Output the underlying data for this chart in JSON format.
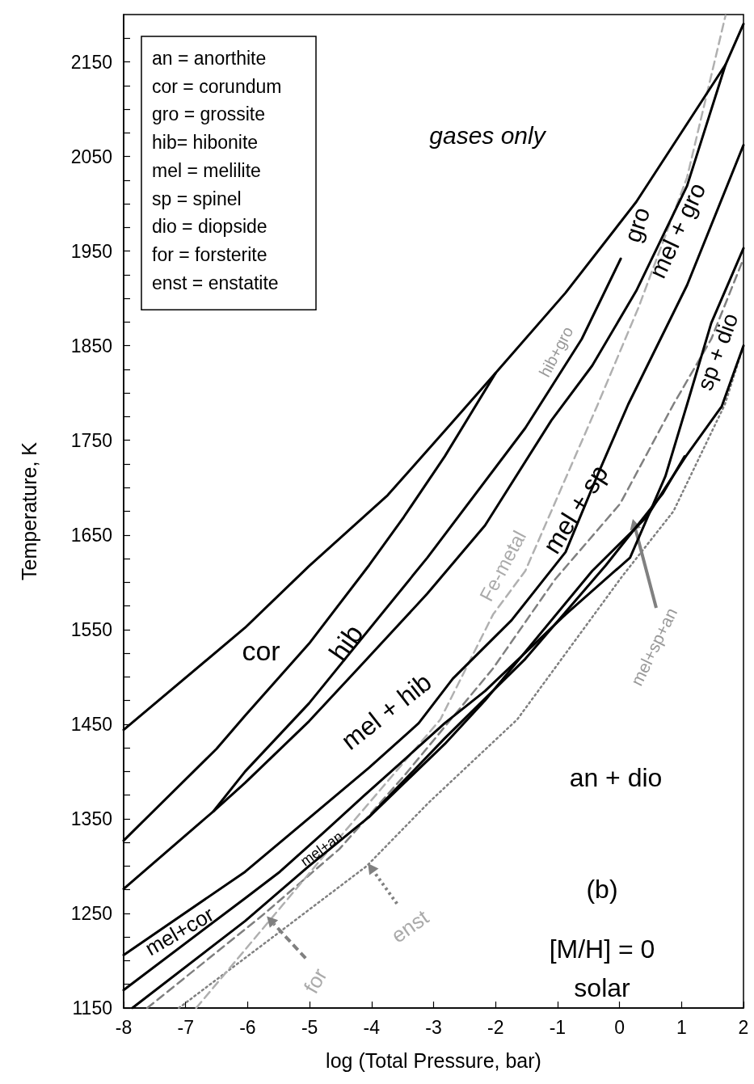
{
  "chart_data": {
    "type": "line",
    "title": "(b)",
    "subtitle": "[M/H] = 0\nsolar",
    "xlabel": "log (Total Pressure, bar)",
    "ylabel": "Temperature, K",
    "xlim": [
      -8,
      2
    ],
    "xticks": [
      -8,
      -7,
      -6,
      -5,
      -4,
      -3,
      -2,
      -1,
      0,
      1,
      2
    ],
    "ylim": [
      1150,
      2200
    ],
    "yticks": [
      1150,
      {
        "value": 1175,
        "label": null
      },
      {
        "value": 1200,
        "label": null
      },
      {
        "value": 1225,
        "label": null
      },
      1250,
      {
        "value": 1275,
        "label": null
      },
      {
        "value": 1300,
        "label": null
      },
      {
        "value": 1325,
        "label": null
      },
      1350,
      {
        "value": 1375,
        "label": null
      },
      {
        "value": 1400,
        "label": null
      },
      {
        "value": 1425,
        "label": null
      },
      1450,
      {
        "value": 1475,
        "label": null
      },
      {
        "value": 1500,
        "label": null
      },
      {
        "value": 1525,
        "label": null
      },
      1550,
      {
        "value": 1575,
        "label": null
      },
      {
        "value": 1600,
        "label": null
      },
      {
        "value": 1625,
        "label": null
      },
      1650,
      {
        "value": 1675,
        "label": null
      },
      {
        "value": 1700,
        "label": null
      },
      {
        "value": 1725,
        "label": null
      },
      1750,
      {
        "value": 1775,
        "label": null
      },
      {
        "value": 1800,
        "label": null
      },
      {
        "value": 1825,
        "label": null
      },
      1850,
      {
        "value": 1875,
        "label": null
      },
      {
        "value": 1900,
        "label": null
      },
      {
        "value": 1925,
        "label": null
      },
      1950,
      {
        "value": 1975,
        "label": null
      },
      {
        "value": 2000,
        "label": null
      },
      {
        "value": 2025,
        "label": null
      },
      2050,
      {
        "value": 2075,
        "label": null
      },
      {
        "value": 2100,
        "label": null
      },
      {
        "value": 2125,
        "label": null
      },
      2150,
      {
        "value": 2175,
        "label": null
      }
    ],
    "grid": false,
    "marker": "none",
    "annotations": [
      "an = anorthite",
      "cor = corundum",
      "gro = grossite",
      "hib= hibonite",
      "mel = melilite",
      "sp = spinel",
      "dio = diopside",
      "for = forsterite",
      "enst = enstatite",
      "gases only",
      "cor",
      "hib",
      "mel + hib",
      "mel+cor",
      "mel+an",
      "mel + sp",
      "an + dio",
      "gro",
      "mel + gro",
      "sp + dio",
      "hib+gro",
      "Fe-metal",
      "mel+sp+an",
      {
        "text": "for",
        "x": -5.69,
        "y": 1247
      },
      {
        "text": "enst",
        "x": -4.06,
        "y": 1303
      }
    ],
    "series": [
      {
        "color": "#000000",
        "line_style": "solid",
        "x": [
          -8,
          -6.04,
          -5.01,
          -3.74,
          -2.82,
          -2,
          -0.87,
          0.27,
          1.71,
          2
        ],
        "values": [
          1444,
          1552,
          1617,
          1692,
          1760,
          1821,
          1906,
          2002,
          2147,
          2190
        ]
      },
      {
        "color": "#000000",
        "line_style": "solid",
        "x": [
          -8,
          -6.5,
          -6.04,
          -5.01,
          -4.04,
          -3.48,
          -2.82,
          -2
        ],
        "values": [
          1327,
          1424,
          1459,
          1535,
          1618,
          1669,
          1733,
          1821
        ]
      },
      {
        "color": "#000000",
        "line_style": "solid",
        "x": [
          -6.55,
          -6.04,
          -5.01,
          -3.1,
          -1.52,
          -0.61,
          0.02
        ],
        "values": [
          1358,
          1400,
          1472,
          1626,
          1763,
          1857,
          1942
        ]
      },
      {
        "color": "#000000",
        "line_style": "solid",
        "x": [
          -8,
          -6.55,
          -6.04,
          -5.01,
          -4.13,
          -3.1,
          -2.17,
          -1.1,
          -0.44,
          0.27,
          1.09,
          1.71
        ],
        "values": [
          1276,
          1358,
          1388,
          1453,
          1515,
          1588,
          1660,
          1771,
          1829,
          1908,
          2019,
          2147
        ]
      },
      {
        "color": "#000000",
        "line_style": "solid",
        "x": [
          -8,
          -6.04,
          -4.04,
          -3.24,
          -2.69,
          -1.74,
          -0.87,
          -0.35,
          0.14,
          1.09,
          2
        ],
        "values": [
          1206,
          1294,
          1404,
          1451,
          1498,
          1560,
          1632,
          1714,
          1788,
          1914,
          2062
        ]
      },
      {
        "color": "#000000",
        "line_style": "solid",
        "x": [
          -8,
          -6.04,
          -5.48,
          -4.78,
          -4.13,
          -3.48,
          -2.82,
          -2.17,
          -0.87,
          0.17,
          0.74,
          1.09,
          1.48,
          2
        ],
        "values": [
          1169,
          1266,
          1294,
          1335,
          1374,
          1412,
          1451,
          1485,
          1566,
          1626,
          1712,
          1788,
          1874,
          1953
        ]
      },
      {
        "color": "#000000",
        "line_style": "solid",
        "x": [
          -7.86,
          -6.04,
          -5.01,
          -4.04,
          -2.82,
          -1.52,
          -0.22,
          0.7,
          1.05
        ],
        "values": [
          1150,
          1242,
          1300,
          1352,
          1435,
          1519,
          1618,
          1694,
          1733
        ]
      },
      {
        "color": "#000000",
        "line_style": "solid",
        "x": [
          -4.04,
          -2.82,
          -2.17,
          -0.44,
          0.44,
          0.74,
          1.09,
          1.65,
          2
        ],
        "values": [
          1352,
          1429,
          1475,
          1612,
          1669,
          1700,
          1735,
          1786,
          1850
        ]
      },
      {
        "color": "#808080",
        "line_style": "dashed",
        "x": [
          -7.62,
          -5.76,
          -4.52,
          -3.48,
          -2.04,
          -1.04,
          0.01,
          0.87,
          1.48,
          2
        ],
        "values": [
          1150,
          1248,
          1318,
          1395,
          1509,
          1603,
          1683,
          1788,
          1857,
          1942
        ]
      },
      {
        "color": "#808080",
        "line_style": "dotted",
        "x": [
          -7.11,
          -5.43,
          -4.08,
          -3.08,
          -1.65,
          0.04,
          0.87,
          1.7,
          2
        ],
        "values": [
          1150,
          1233,
          1300,
          1367,
          1455,
          1606,
          1675,
          1788,
          1850
        ]
      },
      {
        "color": "#b0b0b0",
        "line_style": "dashed",
        "x": [
          -6.83,
          -4.78,
          -2.89,
          -2.04,
          -1.52,
          -0.35,
          0.31,
          1.09,
          1.71
        ],
        "values": [
          1150,
          1310,
          1455,
          1566,
          1612,
          1788,
          1891,
          2028,
          2199
        ]
      }
    ]
  }
}
